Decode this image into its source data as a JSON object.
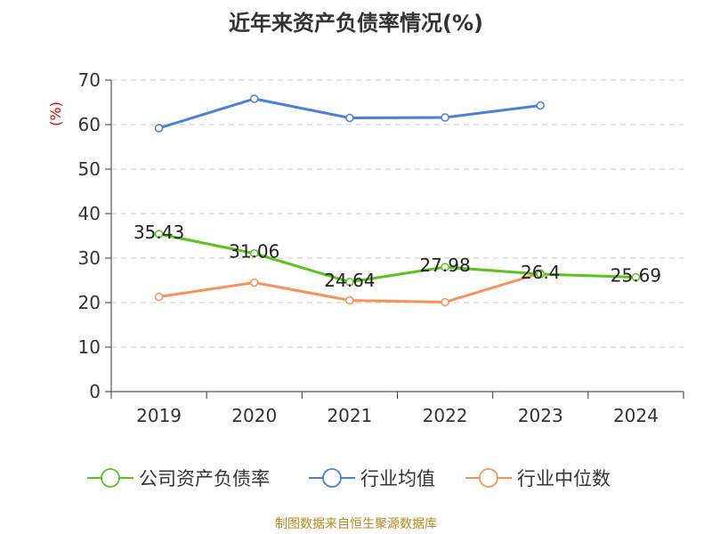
{
  "chart_data": {
    "type": "line",
    "title": "近年来资产负债率情况(%)",
    "ylabel": "(%)",
    "xlabel": "",
    "categories": [
      "2019",
      "2020",
      "2021",
      "2022",
      "2023",
      "2024"
    ],
    "ylim": [
      0,
      70
    ],
    "yticks": [
      0,
      10,
      20,
      30,
      40,
      50,
      60,
      70
    ],
    "grid": "horizontal-dashed",
    "legend_position": "bottom",
    "series": [
      {
        "name": "公司资产负债率",
        "color": "#5bc21b",
        "values": [
          35.43,
          31.06,
          24.64,
          27.98,
          26.4,
          25.69
        ],
        "labels": [
          "35.43",
          "31.06",
          "24.64",
          "27.98",
          "26.4",
          "25.69"
        ]
      },
      {
        "name": "行业均值",
        "color": "#4a7fdc",
        "values": [
          59.2,
          65.8,
          61.5,
          61.6,
          64.3,
          null
        ]
      },
      {
        "name": "行业中位数",
        "color": "#f6935c",
        "values": [
          21.3,
          24.5,
          20.5,
          20.1,
          26.6,
          null
        ]
      }
    ]
  },
  "source": "制图数据来自恒生聚源数据库"
}
